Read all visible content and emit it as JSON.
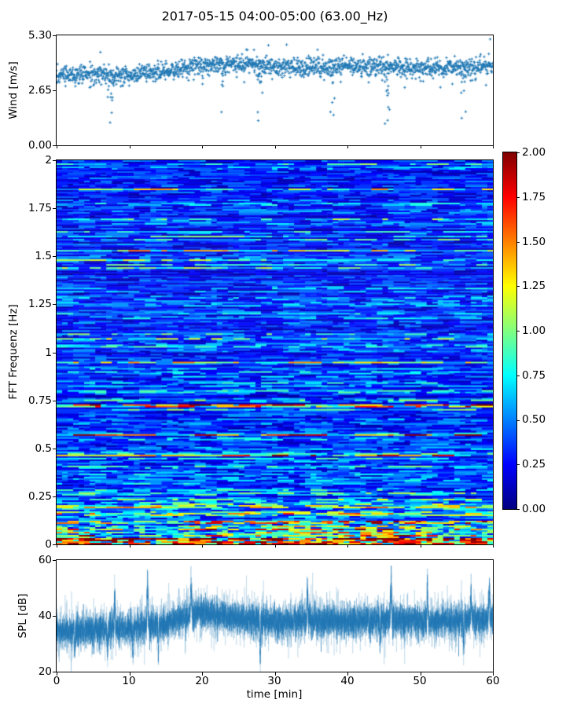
{
  "title": "2017-05-15 04:00-05:00 (63.00_Hz)",
  "accent_color": "#1f77b4",
  "chart_data": [
    {
      "id": "wind",
      "type": "scatter",
      "ylabel": "Wind [m/s]",
      "color": "#1f77b4",
      "marker": "+",
      "xlim": [
        0,
        60
      ],
      "ylim": [
        0,
        5.3
      ],
      "yticks": [
        0.0,
        2.65,
        5.3
      ],
      "ytick_labels_top_to_bottom": [
        "5.30",
        "2.65",
        "0.00"
      ],
      "n_points": 1800,
      "scatter_std": 0.22,
      "mean_profile": {
        "x_min": [
          0,
          5,
          10,
          15,
          20,
          25,
          30,
          35,
          40,
          45,
          50,
          55,
          60
        ],
        "wind_ms": [
          3.45,
          3.42,
          3.38,
          3.55,
          3.85,
          3.95,
          3.8,
          3.75,
          3.85,
          3.8,
          3.7,
          3.75,
          3.85
        ]
      },
      "dip_events_min": [
        7.5,
        23,
        28,
        38,
        45.5,
        56
      ],
      "dip_min_wind_ms": 1.1
    },
    {
      "id": "fft-spectrogram",
      "type": "heatmap",
      "ylabel": "FFT Frequenz [Hz]",
      "xlim": [
        0,
        60
      ],
      "ylim": [
        0,
        2
      ],
      "yticks": [
        0,
        0.25,
        0.5,
        0.75,
        1,
        1.25,
        1.5,
        1.75,
        2
      ],
      "ytick_labels_top_to_bottom": [
        "2",
        "1.75",
        "1.5",
        "1.25",
        "1",
        "0.75",
        "0.5",
        "0.25",
        "0"
      ],
      "colormap": "jet",
      "clim": [
        0,
        2
      ],
      "colorbar": {
        "ticks": [
          0,
          0.25,
          0.5,
          0.75,
          1,
          1.25,
          1.5,
          1.75,
          2
        ],
        "tick_labels_top_to_bottom": [
          "2.00",
          "1.75",
          "1.50",
          "1.25",
          "1.00",
          "0.75",
          "0.50",
          "0.25",
          "0.00"
        ]
      },
      "freq_profile": {
        "freq_upper_hz": [
          0.03,
          0.06,
          0.12,
          0.22,
          0.35,
          2
        ],
        "mean_level": [
          1.4,
          1.0,
          0.72,
          0.52,
          0.42,
          0.34
        ]
      },
      "texture": {
        "rows": 244,
        "cols": 79,
        "row_gain_sigma": 0.3,
        "bright_streak_prob": 0.05
      }
    },
    {
      "id": "spl",
      "type": "line",
      "ylabel": "SPL [dB]",
      "xlabel": "time [min]",
      "color": "#1f77b4",
      "xlim": [
        0,
        60
      ],
      "ylim": [
        20,
        60
      ],
      "yticks": [
        20,
        40,
        60
      ],
      "ytick_labels_top_to_bottom": [
        "60",
        "40",
        "20"
      ],
      "xticks": [
        0,
        10,
        20,
        30,
        40,
        50,
        60
      ],
      "xtick_labels": [
        "0",
        "10",
        "20",
        "30",
        "40",
        "50",
        "60"
      ],
      "noise_std_db": 2.4,
      "mean_profile": {
        "x_min": [
          0,
          5,
          10,
          15,
          20,
          25,
          30,
          35,
          40,
          45,
          50,
          55,
          60
        ],
        "spl_db": [
          34.5,
          35,
          35.5,
          37.5,
          41.5,
          39,
          38,
          38.5,
          38,
          38.5,
          38,
          38.5,
          39
        ]
      },
      "spikes": {
        "up_min": [
          8,
          12.5,
          18.5,
          34.5,
          46,
          51,
          57,
          59.5
        ],
        "up_amp_db": [
          13,
          17,
          13,
          13,
          16,
          14,
          12,
          14
        ],
        "down_min": [
          2.5,
          7,
          10.5,
          14,
          28,
          44.5,
          56
        ],
        "down_amp_db": [
          9,
          10,
          10,
          9,
          16,
          11,
          10
        ]
      }
    }
  ]
}
